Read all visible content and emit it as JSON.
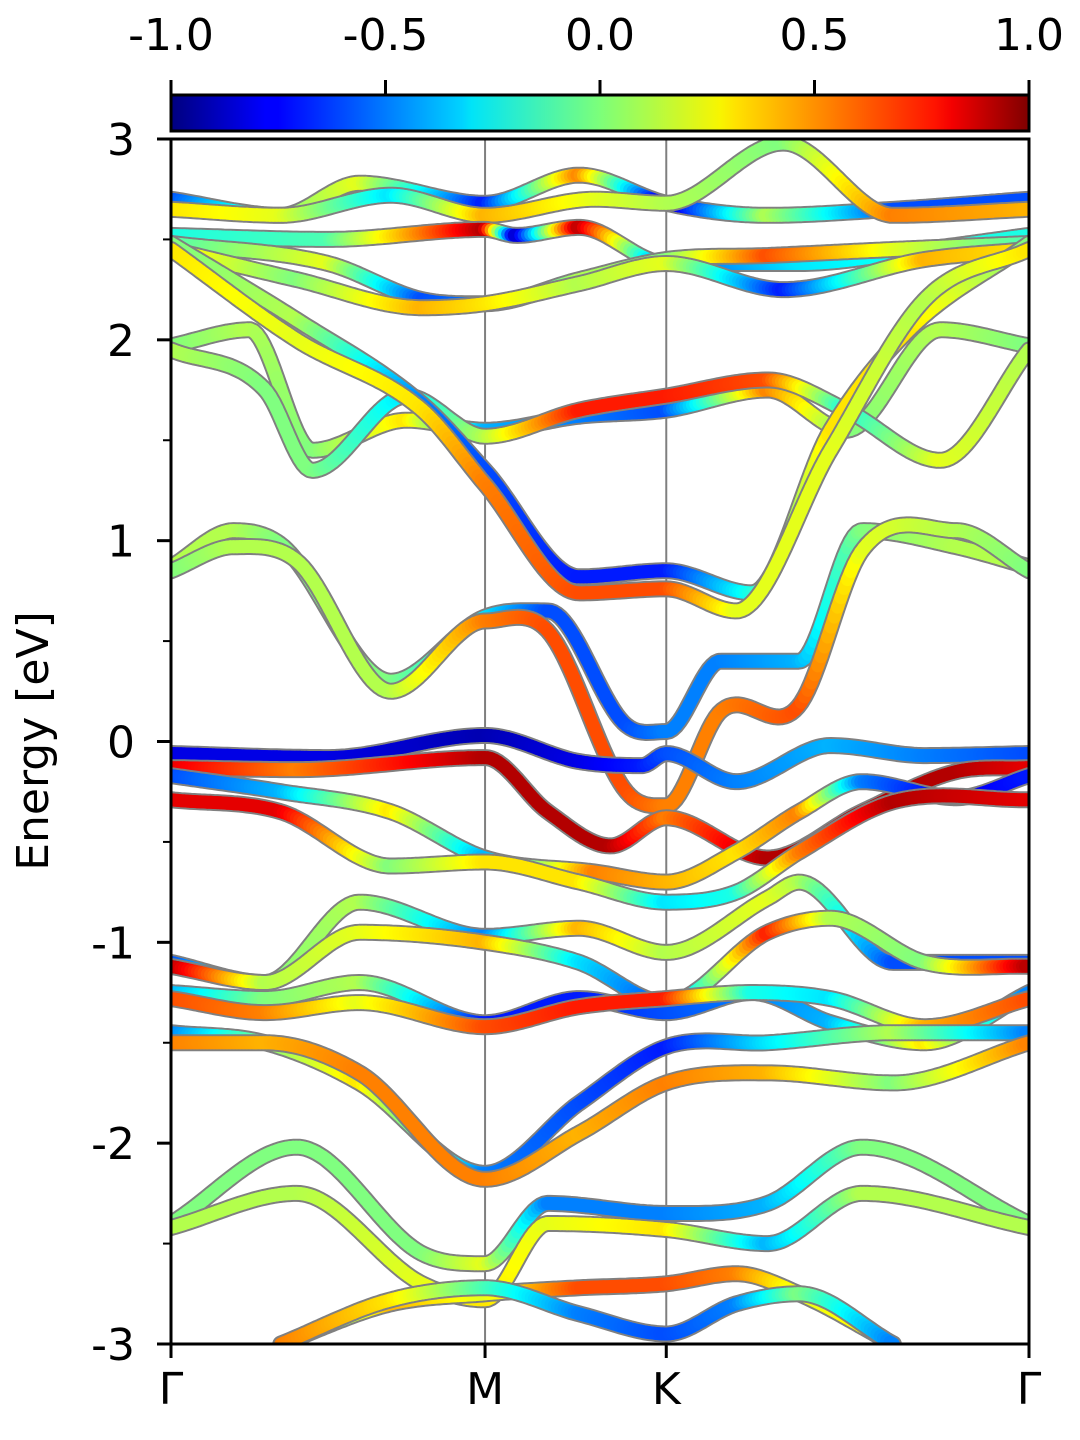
{
  "chart_data": {
    "type": "line",
    "title": "",
    "xlabel": "",
    "ylabel": "Energy [eV]",
    "ylim": [
      -3,
      3
    ],
    "yticks": [
      "3",
      "2",
      "1",
      "0",
      "-1",
      "-2",
      "-3"
    ],
    "yminor_ticks": [
      2.5,
      1.5,
      0.5,
      -0.5,
      -1.5,
      -2.5
    ],
    "kpoints": [
      {
        "label": "Γ",
        "x": 0.0
      },
      {
        "label": "M",
        "x": 1.0
      },
      {
        "label": "K",
        "x": 1.577
      },
      {
        "label": "Γ",
        "x": 2.732
      }
    ],
    "xlim": [
      0,
      2.732
    ],
    "colorbar": {
      "label": "",
      "range": [
        -1.0,
        1.0
      ],
      "ticks": [
        "-1.0",
        "-0.5",
        "0.0",
        "0.5",
        "1.0"
      ],
      "colormap": "jet"
    },
    "series": [
      {
        "x": [
          0,
          0.35,
          0.6,
          1.0,
          1.3,
          1.577,
          1.9,
          2.3,
          2.732
        ],
        "y": [
          2.7,
          2.62,
          2.78,
          2.68,
          2.82,
          2.68,
          2.62,
          2.65,
          2.7
        ],
        "c": [
          -0.6,
          0.0,
          0.2,
          -0.7,
          0.5,
          -0.9,
          0.1,
          -0.6,
          -0.6
        ]
      },
      {
        "x": [
          0,
          0.35,
          0.7,
          1.0,
          1.35,
          1.577,
          1.95,
          2.3,
          2.732
        ],
        "y": [
          2.65,
          2.62,
          2.72,
          2.62,
          2.7,
          2.68,
          2.98,
          2.62,
          2.65
        ],
        "c": [
          0.3,
          0.2,
          -0.3,
          0.4,
          0.2,
          0.1,
          0.0,
          0.5,
          0.4
        ]
      },
      {
        "x": [
          0,
          0.5,
          1.0,
          1.1,
          1.3,
          1.577,
          2.0,
          2.4,
          2.732
        ],
        "y": [
          2.52,
          2.5,
          2.55,
          2.52,
          2.56,
          2.38,
          2.38,
          2.45,
          2.52
        ],
        "c": [
          -0.2,
          -0.1,
          0.9,
          -0.9,
          0.9,
          -0.6,
          -0.3,
          -0.2,
          -0.2
        ]
      },
      {
        "x": [
          0,
          0.5,
          0.8,
          1.0,
          1.3,
          1.577,
          1.9,
          2.3,
          2.732
        ],
        "y": [
          2.48,
          2.38,
          2.2,
          2.18,
          2.3,
          2.4,
          2.42,
          2.45,
          2.48
        ],
        "c": [
          -0.1,
          0.2,
          -0.6,
          -0.5,
          0.1,
          0.0,
          0.6,
          0.2,
          -0.1
        ]
      },
      {
        "x": [
          0,
          0.4,
          0.8,
          1.0,
          1.3,
          1.577,
          1.95,
          2.4,
          2.732
        ],
        "y": [
          2.45,
          2.3,
          2.16,
          2.18,
          2.28,
          2.38,
          2.25,
          2.4,
          2.45
        ],
        "c": [
          0.3,
          0.0,
          0.4,
          0.3,
          0.1,
          0.2,
          -0.7,
          0.4,
          0.3
        ]
      },
      {
        "x": [
          0,
          0.25,
          0.45,
          0.75,
          1.0,
          1.3,
          1.577,
          1.9,
          2.15,
          2.45,
          2.732
        ],
        "y": [
          1.97,
          2.05,
          1.45,
          1.6,
          1.55,
          1.62,
          1.65,
          1.75,
          1.55,
          2.05,
          1.97
        ],
        "c": [
          0.0,
          0.1,
          0.0,
          0.3,
          -0.4,
          -0.5,
          -0.6,
          0.5,
          0.0,
          0.1,
          0.0
        ]
      },
      {
        "x": [
          0,
          0.3,
          0.45,
          0.75,
          1.0,
          1.3,
          1.577,
          1.9,
          2.15,
          2.45,
          2.732
        ],
        "y": [
          1.95,
          1.75,
          1.35,
          1.72,
          1.52,
          1.65,
          1.72,
          1.8,
          1.65,
          1.4,
          1.95
        ],
        "c": [
          0.1,
          0.0,
          0.0,
          -0.3,
          0.1,
          0.7,
          0.7,
          0.6,
          -0.2,
          0.2,
          0.1
        ]
      },
      {
        "x": [
          0,
          0.4,
          0.8,
          1.0,
          1.3,
          1.577,
          1.85,
          2.1,
          2.35,
          2.732
        ],
        "y": [
          2.48,
          2.1,
          1.68,
          1.35,
          0.82,
          0.85,
          0.74,
          1.55,
          2.05,
          2.48
        ],
        "c": [
          0.0,
          0.1,
          -0.5,
          -0.6,
          -0.7,
          -0.7,
          -0.2,
          0.3,
          0.3,
          0.0
        ]
      },
      {
        "x": [
          0,
          0.4,
          0.8,
          1.0,
          1.3,
          1.577,
          1.8,
          2.1,
          2.4,
          2.732
        ],
        "y": [
          2.45,
          2.0,
          1.65,
          1.28,
          0.74,
          0.76,
          0.65,
          1.45,
          2.2,
          2.45
        ],
        "c": [
          0.3,
          0.2,
          0.3,
          0.5,
          0.6,
          0.6,
          0.2,
          0.2,
          0.1,
          0.3
        ]
      },
      {
        "x": [
          0,
          0.2,
          0.35,
          0.7,
          1.0,
          1.2,
          1.45,
          1.577,
          1.75,
          2.0,
          2.2,
          2.5,
          2.732
        ],
        "y": [
          0.87,
          1.05,
          0.98,
          0.3,
          0.62,
          0.65,
          0.08,
          0.05,
          0.4,
          0.4,
          1.05,
          0.97,
          0.87
        ],
        "c": [
          0.1,
          0.1,
          0.0,
          0.0,
          -0.3,
          -0.6,
          -0.6,
          -0.5,
          -0.5,
          -0.4,
          0.0,
          0.1,
          0.1
        ]
      },
      {
        "x": [
          0,
          0.2,
          0.4,
          0.7,
          1.0,
          1.2,
          1.45,
          1.577,
          1.75,
          2.0,
          2.2,
          2.5,
          2.732
        ],
        "y": [
          0.85,
          0.97,
          0.9,
          0.25,
          0.6,
          0.55,
          -0.25,
          -0.32,
          0.15,
          0.18,
          0.95,
          1.05,
          0.85
        ],
        "c": [
          0.0,
          0.1,
          0.1,
          0.1,
          0.5,
          0.6,
          0.6,
          0.5,
          0.5,
          0.6,
          0.2,
          0.1,
          0.0
        ]
      },
      {
        "x": [
          0,
          0.5,
          1.0,
          1.3,
          1.5,
          1.577,
          1.8,
          2.1,
          2.4,
          2.732
        ],
        "y": [
          -0.06,
          -0.08,
          0.03,
          -0.1,
          -0.12,
          -0.06,
          -0.2,
          -0.02,
          -0.07,
          -0.06
        ],
        "c": [
          -0.8,
          -0.8,
          -0.9,
          -0.8,
          -0.7,
          -0.6,
          -0.5,
          -0.4,
          -0.5,
          -0.6
        ]
      },
      {
        "x": [
          0,
          0.4,
          1.0,
          1.2,
          1.4,
          1.577,
          1.9,
          2.2,
          2.5,
          2.732
        ],
        "y": [
          -0.13,
          -0.14,
          -0.08,
          -0.35,
          -0.52,
          -0.38,
          -0.58,
          -0.35,
          -0.15,
          -0.13
        ],
        "c": [
          0.8,
          0.5,
          0.9,
          0.9,
          0.9,
          0.5,
          0.9,
          0.9,
          0.9,
          0.8
        ]
      },
      {
        "x": [
          0,
          0.35,
          0.7,
          1.0,
          1.35,
          1.577,
          1.8,
          2.0,
          2.2,
          2.5,
          2.732
        ],
        "y": [
          -0.17,
          -0.25,
          -0.35,
          -0.58,
          -0.65,
          -0.7,
          -0.55,
          -0.35,
          -0.2,
          -0.28,
          -0.17
        ],
        "c": [
          -0.6,
          -0.4,
          0.3,
          -0.4,
          0.5,
          0.4,
          0.3,
          0.5,
          -0.5,
          -0.8,
          -0.7
        ]
      },
      {
        "x": [
          0,
          0.35,
          0.7,
          1.0,
          1.3,
          1.577,
          1.8,
          2.0,
          2.3,
          2.732
        ],
        "y": [
          -0.29,
          -0.35,
          -0.62,
          -0.6,
          -0.7,
          -0.8,
          -0.75,
          -0.55,
          -0.3,
          -0.29
        ],
        "c": [
          0.8,
          0.8,
          0.0,
          0.3,
          0.3,
          -0.3,
          -0.2,
          0.5,
          0.9,
          0.8
        ]
      },
      {
        "x": [
          0,
          0.3,
          0.6,
          1.0,
          1.3,
          1.577,
          1.9,
          2.0,
          2.3,
          2.732
        ],
        "y": [
          -1.1,
          -1.2,
          -0.8,
          -0.97,
          -0.93,
          -1.05,
          -0.78,
          -0.7,
          -1.1,
          -1.1
        ],
        "c": [
          -0.6,
          0.0,
          0.1,
          -0.5,
          0.4,
          0.1,
          0.2,
          0.1,
          -0.6,
          -0.6
        ]
      },
      {
        "x": [
          0,
          0.3,
          0.6,
          1.0,
          1.3,
          1.577,
          1.9,
          2.1,
          2.4,
          2.732
        ],
        "y": [
          -1.12,
          -1.2,
          -0.95,
          -1.0,
          -1.1,
          -1.3,
          -0.95,
          -0.88,
          -1.1,
          -1.12
        ],
        "c": [
          0.9,
          0.1,
          0.2,
          0.4,
          -0.3,
          -0.6,
          0.7,
          0.1,
          0.0,
          0.9
        ]
      },
      {
        "x": [
          0,
          0.3,
          0.6,
          1.0,
          1.3,
          1.577,
          1.85,
          2.1,
          2.4,
          2.732
        ],
        "y": [
          -1.25,
          -1.28,
          -1.2,
          -1.4,
          -1.28,
          -1.35,
          -1.25,
          -1.4,
          -1.5,
          -1.25
        ],
        "c": [
          -0.4,
          0.0,
          0.1,
          -0.7,
          -0.7,
          -0.6,
          -0.5,
          -0.4,
          0.3,
          -0.5
        ]
      },
      {
        "x": [
          0,
          0.3,
          0.6,
          1.0,
          1.3,
          1.577,
          1.85,
          2.1,
          2.4,
          2.732
        ],
        "y": [
          -1.28,
          -1.35,
          -1.3,
          -1.42,
          -1.32,
          -1.28,
          -1.25,
          -1.28,
          -1.42,
          -1.28
        ],
        "c": [
          0.6,
          0.5,
          0.2,
          0.6,
          0.7,
          0.7,
          -0.2,
          -0.3,
          0.4,
          0.6
        ]
      },
      {
        "x": [
          0,
          0.3,
          0.6,
          1.0,
          1.3,
          1.577,
          1.9,
          2.3,
          2.732
        ],
        "y": [
          -1.45,
          -1.5,
          -1.7,
          -2.15,
          -1.8,
          -1.52,
          -1.5,
          -1.45,
          -1.45
        ],
        "c": [
          -0.5,
          0.0,
          0.3,
          -0.5,
          -0.6,
          -0.7,
          -0.3,
          0.1,
          -0.5
        ]
      },
      {
        "x": [
          0,
          0.3,
          0.6,
          1.0,
          1.3,
          1.577,
          1.9,
          2.3,
          2.732
        ],
        "y": [
          -1.5,
          -1.5,
          -1.65,
          -2.18,
          -1.95,
          -1.7,
          -1.65,
          -1.7,
          -1.5
        ],
        "c": [
          0.5,
          0.4,
          0.5,
          0.5,
          0.4,
          0.5,
          0.4,
          0.0,
          0.5
        ]
      },
      {
        "x": [
          0,
          0.4,
          0.8,
          1.0,
          1.2,
          1.577,
          1.9,
          2.2,
          2.732
        ],
        "y": [
          -2.4,
          -2.02,
          -2.55,
          -2.6,
          -2.3,
          -2.35,
          -2.3,
          -2.02,
          -2.4
        ],
        "c": [
          0.0,
          0.0,
          0.0,
          0.2,
          -0.5,
          -0.5,
          -0.4,
          0.0,
          0.0
        ]
      },
      {
        "x": [
          0,
          0.4,
          0.8,
          1.0,
          1.2,
          1.577,
          1.9,
          2.2,
          2.732
        ],
        "y": [
          -2.42,
          -2.25,
          -2.7,
          -2.78,
          -2.4,
          -2.43,
          -2.5,
          -2.25,
          -2.42
        ],
        "c": [
          0.1,
          0.1,
          0.2,
          0.3,
          0.2,
          0.3,
          -0.4,
          0.1,
          0.1
        ]
      },
      {
        "x": [
          0.35,
          0.7,
          1.0,
          1.3,
          1.577,
          1.8,
          2.0,
          2.3
        ],
        "y": [
          -3.0,
          -2.8,
          -2.75,
          -2.72,
          -2.7,
          -2.65,
          -2.75,
          -3.0
        ],
        "c": [
          -0.4,
          0.4,
          0.2,
          0.6,
          0.6,
          0.5,
          0.2,
          0.3
        ]
      },
      {
        "x": [
          0.35,
          0.7,
          1.0,
          1.3,
          1.577,
          1.8,
          2.0,
          2.3
        ],
        "y": [
          -3.0,
          -2.78,
          -2.72,
          -2.85,
          -2.95,
          -2.8,
          -2.75,
          -3.0
        ],
        "c": [
          0.5,
          0.3,
          -0.1,
          -0.5,
          -0.6,
          -0.5,
          0.0,
          -0.5
        ]
      }
    ]
  },
  "colors": {
    "frame": "#000000",
    "kpoint_line": "#7f7f7f",
    "band_outline": "#808080"
  }
}
